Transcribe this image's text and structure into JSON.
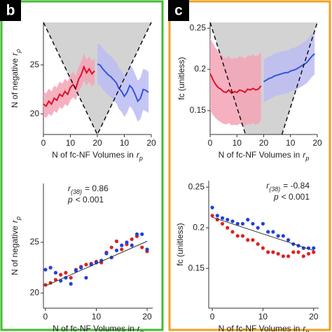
{
  "panel_labels": [
    "b",
    "c"
  ],
  "chart_data": [
    {
      "type": "line",
      "xlabel": {
        "text": "N of fc-NF Volumes in",
        "var": "r",
        "sub": "p"
      },
      "ylabel": {
        "text": "N of negative",
        "var": "r",
        "sub": "ρ"
      },
      "xlim": [
        0,
        40
      ],
      "xticks": [
        0,
        10,
        20,
        {
          "value": 30,
          "label": "10"
        },
        {
          "value": 40,
          "label": "20"
        }
      ],
      "ylim": [
        17.9,
        29.35
      ],
      "yticks": [
        20,
        25
      ],
      "series": [
        {
          "color": "#e0102a",
          "band_color": "#f4a3b6",
          "x": [
            0,
            1,
            2,
            3,
            4,
            5,
            6,
            7,
            8,
            9,
            10,
            11,
            12,
            13,
            14,
            15,
            16,
            17,
            18,
            19
          ],
          "values": [
            21.0,
            20.8,
            21.3,
            21.0,
            21.6,
            21.4,
            22.0,
            21.8,
            22.3,
            22.0,
            22.7,
            23.0,
            22.6,
            23.5,
            24.0,
            24.8,
            24.2,
            24.6,
            24.1,
            24.4
          ],
          "lower": [
            19.8,
            19.6,
            20.0,
            19.8,
            20.3,
            20.1,
            20.7,
            20.5,
            21.0,
            20.8,
            21.4,
            21.7,
            21.4,
            22.2,
            22.7,
            23.4,
            22.9,
            23.3,
            22.8,
            23.1
          ],
          "upper": [
            22.3,
            22.1,
            22.6,
            22.3,
            22.9,
            22.7,
            23.3,
            23.1,
            23.6,
            23.3,
            24.0,
            24.3,
            23.9,
            24.8,
            25.3,
            26.2,
            25.5,
            25.9,
            25.4,
            25.7
          ]
        },
        {
          "color": "#3355dd",
          "band_color": "#bcbcf2",
          "x": [
            20,
            21,
            22,
            23,
            24,
            25,
            26,
            27,
            28,
            29,
            30,
            31,
            32,
            33,
            34,
            35,
            36,
            37,
            38,
            39
          ],
          "values": [
            25.1,
            25.0,
            24.6,
            24.3,
            24.0,
            23.8,
            23.5,
            23.2,
            22.6,
            22.3,
            21.8,
            22.2,
            22.9,
            22.6,
            22.0,
            21.3,
            21.6,
            22.5,
            22.4,
            22.2
          ],
          "lower": [
            23.0,
            22.9,
            22.5,
            22.2,
            21.9,
            21.7,
            21.4,
            21.1,
            20.5,
            20.2,
            19.7,
            20.1,
            20.8,
            20.5,
            19.9,
            19.2,
            19.5,
            20.4,
            20.3,
            20.1
          ],
          "upper": [
            27.2,
            27.1,
            26.7,
            26.4,
            26.1,
            25.9,
            25.6,
            25.3,
            24.7,
            24.4,
            23.9,
            24.3,
            25.0,
            24.7,
            24.1,
            23.4,
            23.7,
            24.6,
            24.5,
            24.3
          ]
        }
      ]
    },
    {
      "type": "scatter",
      "xlabel": {
        "text": "N of fc-NF Volumes in",
        "var": "r",
        "sub": "p"
      },
      "ylabel": {
        "text": "N of negative",
        "var": "r",
        "sub": "p"
      },
      "annotation": {
        "r": "r",
        "df": "(38)",
        "stat": "= 0.86",
        "p": "p",
        "pstat": "< 0.001"
      },
      "xlim": [
        -0.4,
        21.1
      ],
      "xticks": [
        0,
        10,
        20
      ],
      "ylim": [
        18.5,
        30.8
      ],
      "yticks": [
        20,
        25
      ],
      "fit": {
        "color": "#333333",
        "x": [
          0,
          20
        ],
        "y": [
          20.7,
          25.1
        ]
      },
      "series": [
        {
          "color": "#e02020",
          "x": [
            0,
            1,
            2,
            3,
            4,
            5,
            6,
            7,
            8,
            9,
            10,
            11,
            12,
            13,
            14,
            15,
            16,
            17,
            18,
            19,
            20
          ],
          "values": [
            20.8,
            21.0,
            21.3,
            21.8,
            22.0,
            21.5,
            22.3,
            22.6,
            22.8,
            22.9,
            23.1,
            23.0,
            24.0,
            24.5,
            25.1,
            24.3,
            24.8,
            25.3,
            25.6,
            24.5,
            24.1
          ]
        },
        {
          "color": "#2040e0",
          "x": [
            0,
            1,
            2,
            3,
            4,
            5,
            6,
            7,
            8,
            9,
            10,
            11,
            12,
            13,
            14,
            15,
            16,
            17,
            18,
            19,
            20
          ],
          "values": [
            22.3,
            22.5,
            22.0,
            21.2,
            21.5,
            20.9,
            22.2,
            22.5,
            21.5,
            22.8,
            23.0,
            23.2,
            23.9,
            23.5,
            24.2,
            24.7,
            25.0,
            24.7,
            25.8,
            25.8,
            24.3
          ]
        }
      ]
    },
    {
      "type": "line",
      "xlabel": {
        "text": "N of fc-NF Volumes in",
        "var": "r",
        "sub": "p"
      },
      "ylabel": {
        "text": "fc (unitless)"
      },
      "xlim": [
        0,
        40
      ],
      "xticks": [
        0,
        10,
        20,
        {
          "value": 30,
          "label": "10"
        },
        {
          "value": 40,
          "label": "20"
        }
      ],
      "ylim": [
        0.121,
        0.257
      ],
      "yticks": [
        {
          "value": 0.15,
          "label": "0.15"
        },
        {
          "value": 0.2,
          "label": "0.2"
        },
        {
          "value": 0.25,
          "label": "0.25"
        }
      ],
      "series": [
        {
          "color": "#e0102a",
          "band_color": "#f4a3b6",
          "x": [
            0,
            1,
            2,
            3,
            4,
            5,
            6,
            7,
            8,
            9,
            10,
            11,
            12,
            13,
            14,
            15,
            16,
            17,
            18,
            19
          ],
          "values": [
            0.195,
            0.188,
            0.182,
            0.178,
            0.176,
            0.173,
            0.172,
            0.175,
            0.171,
            0.173,
            0.172,
            0.175,
            0.174,
            0.172,
            0.176,
            0.175,
            0.177,
            0.175,
            0.176,
            0.18
          ],
          "lower": [
            0.15,
            0.145,
            0.141,
            0.138,
            0.136,
            0.134,
            0.133,
            0.135,
            0.132,
            0.133,
            0.132,
            0.134,
            0.133,
            0.131,
            0.134,
            0.133,
            0.135,
            0.133,
            0.134,
            0.138
          ],
          "upper": [
            0.238,
            0.232,
            0.226,
            0.222,
            0.218,
            0.215,
            0.213,
            0.216,
            0.212,
            0.214,
            0.213,
            0.216,
            0.215,
            0.213,
            0.217,
            0.216,
            0.218,
            0.216,
            0.217,
            0.221
          ]
        },
        {
          "color": "#3355dd",
          "band_color": "#bcbcf2",
          "x": [
            20,
            21,
            22,
            23,
            24,
            25,
            26,
            27,
            28,
            29,
            30,
            31,
            32,
            33,
            34,
            35,
            36,
            37,
            38,
            39
          ],
          "values": [
            0.185,
            0.187,
            0.189,
            0.19,
            0.192,
            0.193,
            0.194,
            0.195,
            0.196,
            0.196,
            0.198,
            0.199,
            0.2,
            0.202,
            0.204,
            0.206,
            0.208,
            0.212,
            0.216,
            0.219
          ],
          "lower": [
            0.16,
            0.162,
            0.164,
            0.165,
            0.167,
            0.168,
            0.169,
            0.17,
            0.171,
            0.171,
            0.173,
            0.174,
            0.175,
            0.177,
            0.179,
            0.181,
            0.183,
            0.187,
            0.191,
            0.194
          ],
          "upper": [
            0.212,
            0.214,
            0.216,
            0.217,
            0.219,
            0.22,
            0.221,
            0.222,
            0.223,
            0.223,
            0.225,
            0.226,
            0.227,
            0.229,
            0.231,
            0.233,
            0.235,
            0.239,
            0.243,
            0.246
          ]
        }
      ]
    },
    {
      "type": "scatter",
      "xlabel": {
        "text": "N of fc-NF Volumes in",
        "var": "r",
        "sub": "p"
      },
      "ylabel": {
        "text": "fc (unitless)"
      },
      "annotation": {
        "r": "r",
        "df": "(38)",
        "stat": "= -0.84",
        "p": "p",
        "pstat": "< 0.001"
      },
      "xlim": [
        -0.7,
        21
      ],
      "xticks": [
        0,
        10,
        20
      ],
      "ylim": [
        0.101,
        0.258
      ],
      "yticks": [
        {
          "value": 0.15,
          "label": "0.15"
        },
        {
          "value": 0.2,
          "label": "0.2"
        },
        {
          "value": 0.25,
          "label": "0.25"
        }
      ],
      "fit": {
        "color": "#333333",
        "x": [
          0,
          20
        ],
        "y": [
          0.213,
          0.172
        ]
      },
      "series": [
        {
          "color": "#e02020",
          "x": [
            0,
            1,
            2,
            3,
            4,
            5,
            6,
            7,
            8,
            9,
            10,
            11,
            12,
            13,
            14,
            15,
            16,
            17,
            18,
            19,
            20
          ],
          "values": [
            0.215,
            0.21,
            0.205,
            0.2,
            0.195,
            0.19,
            0.19,
            0.185,
            0.185,
            0.18,
            0.175,
            0.17,
            0.17,
            0.168,
            0.165,
            0.165,
            0.17,
            0.17,
            0.165,
            0.168,
            0.17
          ]
        },
        {
          "color": "#2040e0",
          "x": [
            0,
            1,
            2,
            3,
            4,
            5,
            6,
            7,
            8,
            9,
            10,
            11,
            12,
            13,
            14,
            15,
            16,
            17,
            18,
            19,
            20
          ],
          "values": [
            0.225,
            0.215,
            0.212,
            0.21,
            0.208,
            0.205,
            0.205,
            0.21,
            0.205,
            0.2,
            0.205,
            0.195,
            0.195,
            0.19,
            0.19,
            0.185,
            0.18,
            0.178,
            0.175,
            0.175,
            0.175
          ]
        }
      ]
    }
  ]
}
